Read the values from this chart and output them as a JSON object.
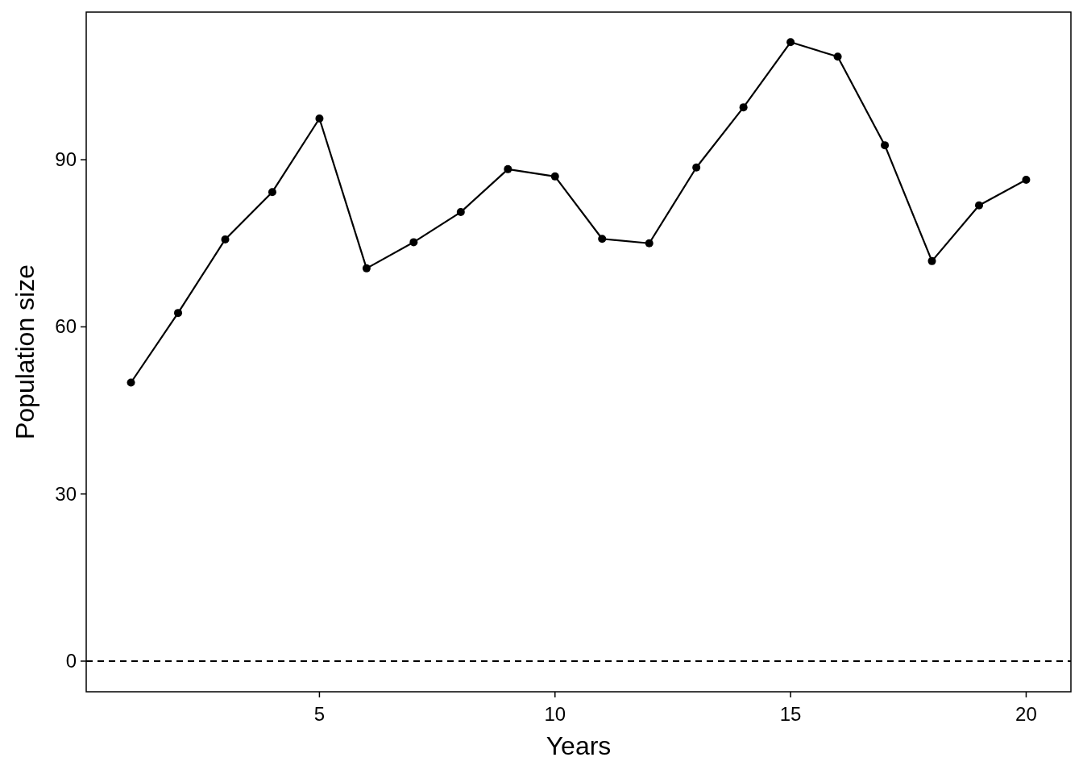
{
  "chart_data": {
    "type": "line",
    "xlabel": "Years",
    "ylabel": "Population size",
    "x": [
      1,
      2,
      3,
      4,
      5,
      6,
      7,
      8,
      9,
      10,
      11,
      12,
      13,
      14,
      15,
      16,
      17,
      18,
      19,
      20
    ],
    "series": [
      {
        "color": "#000000",
        "values": [
          50,
          62.5,
          75.7,
          84.2,
          97.4,
          70.5,
          75.2,
          80.6,
          88.3,
          87.0,
          75.8,
          75.0,
          88.6,
          99.4,
          111.1,
          108.5,
          92.6,
          71.8,
          81.8,
          86.4
        ]
      }
    ],
    "xlim": [
      0.05,
      20.95
    ],
    "xticks": [
      5,
      10,
      15,
      20
    ],
    "ylim": [
      -5.5,
      116.5
    ],
    "yticks": [
      0,
      30,
      60,
      90
    ],
    "ref_lines": [
      {
        "axis": "y",
        "value": 0,
        "line_style": "dashed",
        "color": "#000000"
      }
    ],
    "marker": "circle",
    "line_style": "solid",
    "grid": false
  }
}
